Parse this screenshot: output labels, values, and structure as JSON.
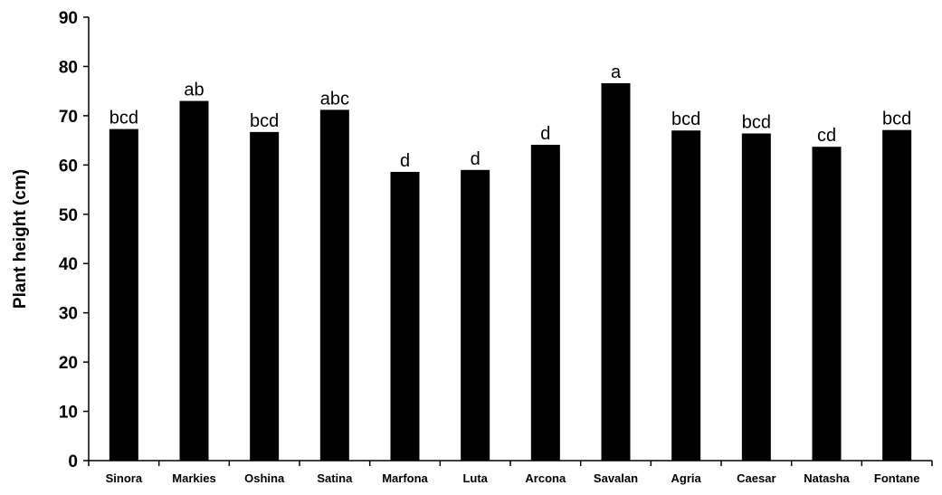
{
  "chart_data": {
    "type": "bar",
    "title": "",
    "xlabel": "",
    "ylabel": "Plant height (cm)",
    "ylim": [
      0,
      90
    ],
    "yticks": [
      0,
      10,
      20,
      30,
      40,
      50,
      60,
      70,
      80,
      90
    ],
    "grid": false,
    "legend": "none",
    "bar_color": "#000000",
    "categories": [
      "Sinora",
      "Markies",
      "Oshina",
      "Satina",
      "Marfona",
      "Luta",
      "Arcona",
      "Savalan",
      "Agria",
      "Caesar",
      "Natasha",
      "Fontane"
    ],
    "values": [
      67.3,
      73.0,
      66.7,
      71.2,
      58.6,
      59.0,
      64.1,
      76.6,
      67.0,
      66.4,
      63.7,
      67.1
    ],
    "annotations": [
      "bcd",
      "ab",
      "bcd",
      "abc",
      "d",
      "d",
      "d",
      "a",
      "bcd",
      "bcd",
      "cd",
      "bcd"
    ]
  }
}
